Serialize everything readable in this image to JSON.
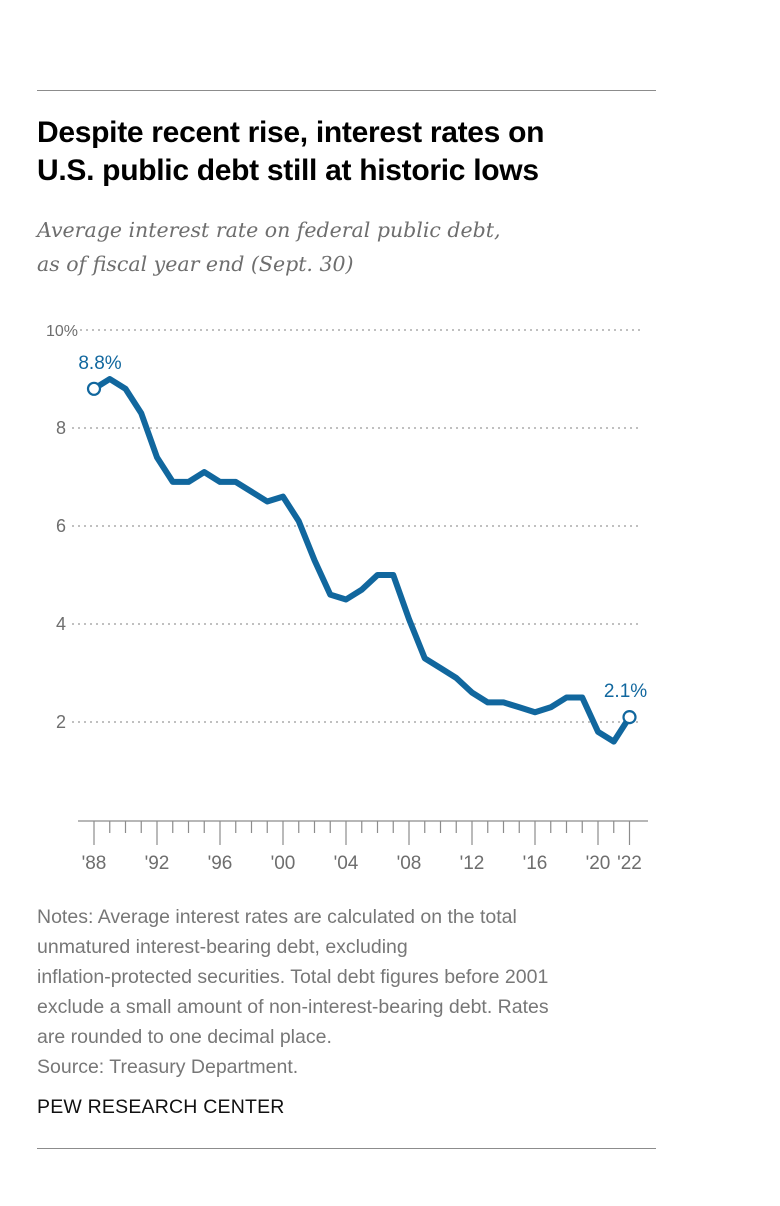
{
  "header": {
    "title_line1": "Despite recent rise, interest rates on",
    "title_line2": "U.S. public debt still at historic lows",
    "subtitle_line1": "Average interest rate on federal public debt,",
    "subtitle_line2": "as of fiscal year end (Sept. 30)"
  },
  "colors": {
    "line": "#11679e",
    "grid": "#9a9a9a",
    "axis_text": "#6e6e6e"
  },
  "chart_data": {
    "type": "line",
    "title": "Despite recent rise, interest rates on U.S. public debt still at historic lows",
    "subtitle": "Average interest rate on federal public debt, as of fiscal year end (Sept. 30)",
    "xlabel": "",
    "ylabel": "",
    "ylim": [
      0,
      10
    ],
    "xlim": [
      1988,
      2022
    ],
    "grid": true,
    "yticks": [
      {
        "value": 10,
        "label": "10%"
      },
      {
        "value": 8,
        "label": "8"
      },
      {
        "value": 6,
        "label": "6"
      },
      {
        "value": 4,
        "label": "4"
      },
      {
        "value": 2,
        "label": "2"
      }
    ],
    "xticks": [
      {
        "value": 1988,
        "label": "'88"
      },
      {
        "value": 1992,
        "label": "'92"
      },
      {
        "value": 1996,
        "label": "'96"
      },
      {
        "value": 2000,
        "label": "'00"
      },
      {
        "value": 2004,
        "label": "'04"
      },
      {
        "value": 2008,
        "label": "'08"
      },
      {
        "value": 2012,
        "label": "'12"
      },
      {
        "value": 2016,
        "label": "'16"
      },
      {
        "value": 2020,
        "label": "'20"
      },
      {
        "value": 2022,
        "label": "'22"
      }
    ],
    "x": [
      1988,
      1989,
      1990,
      1991,
      1992,
      1993,
      1994,
      1995,
      1996,
      1997,
      1998,
      1999,
      2000,
      2001,
      2002,
      2003,
      2004,
      2005,
      2006,
      2007,
      2008,
      2009,
      2010,
      2011,
      2012,
      2013,
      2014,
      2015,
      2016,
      2017,
      2018,
      2019,
      2020,
      2021,
      2022
    ],
    "series": [
      {
        "name": "Average interest rate (%)",
        "values": [
          8.8,
          9.0,
          8.8,
          8.3,
          7.4,
          6.9,
          6.9,
          7.1,
          6.9,
          6.9,
          6.7,
          6.5,
          6.6,
          6.1,
          5.3,
          4.6,
          4.5,
          4.7,
          5.0,
          5.0,
          4.1,
          3.3,
          3.1,
          2.9,
          2.6,
          2.4,
          2.4,
          2.3,
          2.2,
          2.3,
          2.5,
          2.5,
          1.8,
          1.6,
          2.1
        ]
      }
    ],
    "annotations": [
      {
        "x": 1988,
        "y": 8.8,
        "label": "8.8%"
      },
      {
        "x": 2022,
        "y": 2.1,
        "label": "2.1%"
      }
    ],
    "legend": "none"
  },
  "footer": {
    "notes_lines": [
      "Notes: Average interest rates are calculated on the total",
      "unmatured interest-bearing debt, excluding",
      "inflation-protected securities. Total debt figures before 2001",
      "exclude a small amount of non-interest-bearing debt. Rates",
      "are rounded to one decimal place."
    ],
    "source": "Source: Treasury Department.",
    "brand": "PEW RESEARCH CENTER"
  }
}
